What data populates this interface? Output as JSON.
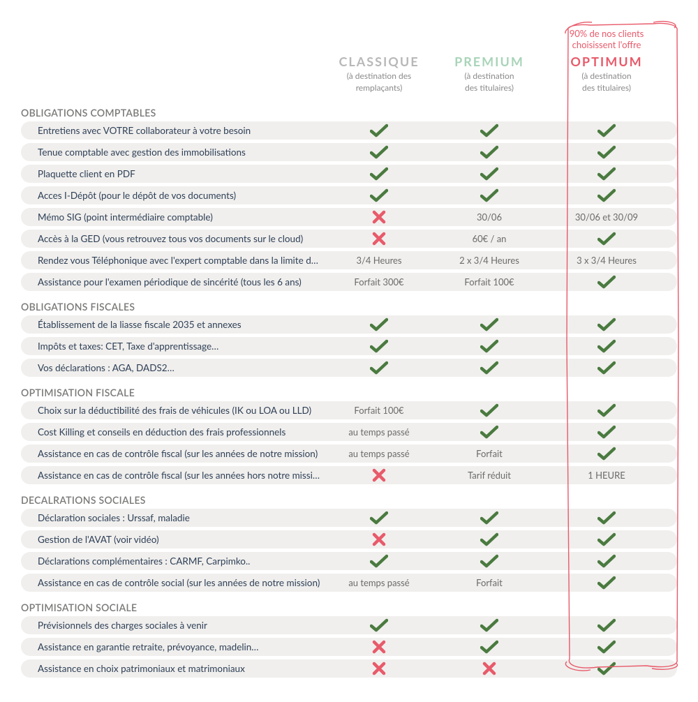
{
  "colors": {
    "check": "#4a7a3f",
    "cross": "#e85a6a",
    "accent": "#e85a6a",
    "row_bg": "#f0efed",
    "label_text": "#2f4057",
    "section_text": "#7a7a78",
    "tier_classique": "#b8b8b8",
    "tier_premium": "#a9d4b9"
  },
  "banner": "90% de nos clients choisissent l'offre",
  "tiers": {
    "classique": {
      "name": "CLASSIQUE",
      "sub1": "(à destination des",
      "sub2": "remplaçants)"
    },
    "premium": {
      "name": "PREMIUM",
      "sub1": "(à destination",
      "sub2": "des titulaires)"
    },
    "optimum": {
      "name": "OPTIMUM",
      "sub1": "(à destination",
      "sub2": "des titulaires)"
    }
  },
  "sections": [
    {
      "title": "OBLIGATIONS COMPTABLES",
      "rows": [
        {
          "label": "Entretiens avec VOTRE collaborateur à votre besoin",
          "c": {
            "t": "check"
          },
          "p": {
            "t": "check"
          },
          "o": {
            "t": "check"
          }
        },
        {
          "label": "Tenue comptable avec gestion des immobilisations",
          "c": {
            "t": "check"
          },
          "p": {
            "t": "check"
          },
          "o": {
            "t": "check"
          }
        },
        {
          "label": "Plaquette client en PDF",
          "c": {
            "t": "check"
          },
          "p": {
            "t": "check"
          },
          "o": {
            "t": "check"
          }
        },
        {
          "label": "Acces I-Dépôt (pour le dépôt de vos documents)",
          "c": {
            "t": "check"
          },
          "p": {
            "t": "check"
          },
          "o": {
            "t": "check"
          }
        },
        {
          "label": "Mémo SIG (point intermédiaire comptable)",
          "c": {
            "t": "cross"
          },
          "p": {
            "t": "text",
            "v": "30/06"
          },
          "o": {
            "t": "text",
            "v": "30/06 et 30/09"
          }
        },
        {
          "label": "Accès à la GED (vous retrouvez tous vos documents sur le cloud)",
          "c": {
            "t": "cross"
          },
          "p": {
            "t": "text",
            "v": "60€ / an"
          },
          "o": {
            "t": "check"
          }
        },
        {
          "label": "Rendez vous Téléphonique avec l'expert comptable dans la limite de…",
          "c": {
            "t": "text",
            "v": "3/4 Heures"
          },
          "p": {
            "t": "text",
            "v": "2 x 3/4 Heures"
          },
          "o": {
            "t": "text",
            "v": "3 x 3/4 Heures"
          }
        },
        {
          "label": "Assistance pour l'examen périodique de sincérité (tous les 6 ans)",
          "c": {
            "t": "text",
            "v": "Forfait 300€"
          },
          "p": {
            "t": "text",
            "v": "Forfait 100€"
          },
          "o": {
            "t": "check"
          }
        }
      ]
    },
    {
      "title": "OBLIGATIONS FISCALES",
      "rows": [
        {
          "label": "Établissement de la liasse fiscale 2035 et annexes",
          "c": {
            "t": "check"
          },
          "p": {
            "t": "check"
          },
          "o": {
            "t": "check"
          }
        },
        {
          "label": "Impôts et taxes: CET, Taxe d'apprentissage…",
          "c": {
            "t": "check"
          },
          "p": {
            "t": "check"
          },
          "o": {
            "t": "check"
          }
        },
        {
          "label": "Vos déclarations : AGA, DADS2…",
          "c": {
            "t": "check"
          },
          "p": {
            "t": "check"
          },
          "o": {
            "t": "check"
          }
        }
      ]
    },
    {
      "title": "OPTIMISATION FISCALE",
      "rows": [
        {
          "label": "Choix sur la déductibilité des frais de véhicules (IK ou LOA ou LLD)",
          "c": {
            "t": "text",
            "v": "Forfait 100€"
          },
          "p": {
            "t": "check"
          },
          "o": {
            "t": "check"
          }
        },
        {
          "label": "Cost Killing et conseils en déduction des frais professionnels",
          "c": {
            "t": "text",
            "v": "au temps passé"
          },
          "p": {
            "t": "check"
          },
          "o": {
            "t": "check"
          }
        },
        {
          "label": "Assistance en cas de contrôle fiscal (sur les années de notre mission)",
          "c": {
            "t": "text",
            "v": "au temps passé"
          },
          "p": {
            "t": "text",
            "v": "Forfait"
          },
          "o": {
            "t": "check"
          }
        },
        {
          "label": "Assistance en cas de contrôle fiscal (sur les années hors notre mission)",
          "c": {
            "t": "cross"
          },
          "p": {
            "t": "text",
            "v": "Tarif réduit"
          },
          "o": {
            "t": "text",
            "v": "1 HEURE"
          }
        }
      ]
    },
    {
      "title": "DECALRATIONS SOCIALES",
      "rows": [
        {
          "label": "Déclaration sociales : Urssaf, maladie",
          "c": {
            "t": "check"
          },
          "p": {
            "t": "check"
          },
          "o": {
            "t": "check"
          }
        },
        {
          "label": "Gestion de l'AVAT (voir vidéo)",
          "c": {
            "t": "cross"
          },
          "p": {
            "t": "check"
          },
          "o": {
            "t": "check"
          }
        },
        {
          "label": "Déclarations complémentaires : CARMF, Carpimko..",
          "c": {
            "t": "check"
          },
          "p": {
            "t": "check"
          },
          "o": {
            "t": "check"
          }
        },
        {
          "label": "Assistance en cas de contrôle social (sur les années de notre mission)",
          "c": {
            "t": "text",
            "v": "au temps passé"
          },
          "p": {
            "t": "text",
            "v": "Forfait"
          },
          "o": {
            "t": "check"
          }
        }
      ]
    },
    {
      "title": "OPTIMISATION SOCIALE",
      "rows": [
        {
          "label": "Prévisionnels des charges sociales à venir",
          "c": {
            "t": "check"
          },
          "p": {
            "t": "check"
          },
          "o": {
            "t": "check"
          }
        },
        {
          "label": "Assistance en garantie retraite, prévoyance, madelin…",
          "c": {
            "t": "cross"
          },
          "p": {
            "t": "check"
          },
          "o": {
            "t": "check"
          }
        },
        {
          "label": "Assistance en choix patrimoniaux et matrimoniaux",
          "c": {
            "t": "cross"
          },
          "p": {
            "t": "cross"
          },
          "o": {
            "t": "check"
          }
        }
      ]
    }
  ]
}
